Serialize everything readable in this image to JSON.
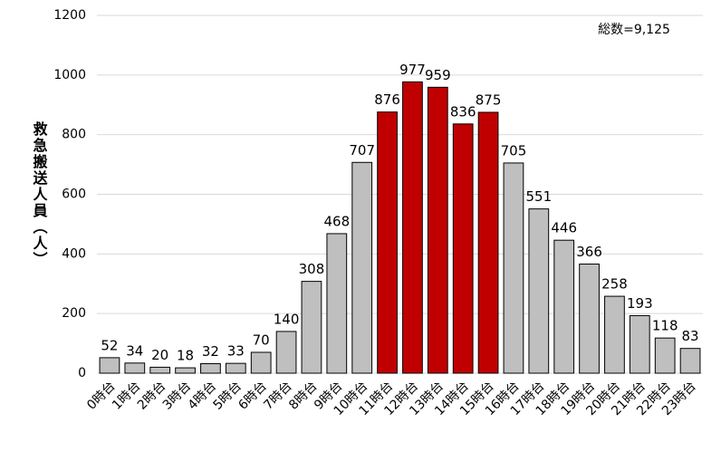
{
  "chart_data": {
    "type": "bar",
    "y_label": "救急搬送人員（人）",
    "annotation": "総数=9,125",
    "categories": [
      "0時台",
      "1時台",
      "2時台",
      "3時台",
      "4時台",
      "5時台",
      "6時台",
      "7時台",
      "8時台",
      "9時台",
      "10時台",
      "11時台",
      "12時台",
      "13時台",
      "14時台",
      "15時台",
      "16時台",
      "17時台",
      "18時台",
      "19時台",
      "20時台",
      "21時台",
      "22時台",
      "23時台"
    ],
    "values": [
      52,
      34,
      20,
      18,
      32,
      33,
      70,
      140,
      308,
      468,
      707,
      876,
      977,
      959,
      836,
      875,
      705,
      551,
      446,
      366,
      258,
      193,
      118,
      83
    ],
    "colors": [
      "#bfbfbf",
      "#bfbfbf",
      "#bfbfbf",
      "#bfbfbf",
      "#bfbfbf",
      "#bfbfbf",
      "#bfbfbf",
      "#bfbfbf",
      "#bfbfbf",
      "#bfbfbf",
      "#bfbfbf",
      "#c00000",
      "#c00000",
      "#c00000",
      "#c00000",
      "#c00000",
      "#bfbfbf",
      "#bfbfbf",
      "#bfbfbf",
      "#bfbfbf",
      "#bfbfbf",
      "#bfbfbf",
      "#bfbfbf",
      "#bfbfbf"
    ],
    "ylim": [
      0,
      1200
    ],
    "yticks": [
      0,
      200,
      400,
      600,
      800,
      1000,
      1200
    ],
    "grid": true
  }
}
